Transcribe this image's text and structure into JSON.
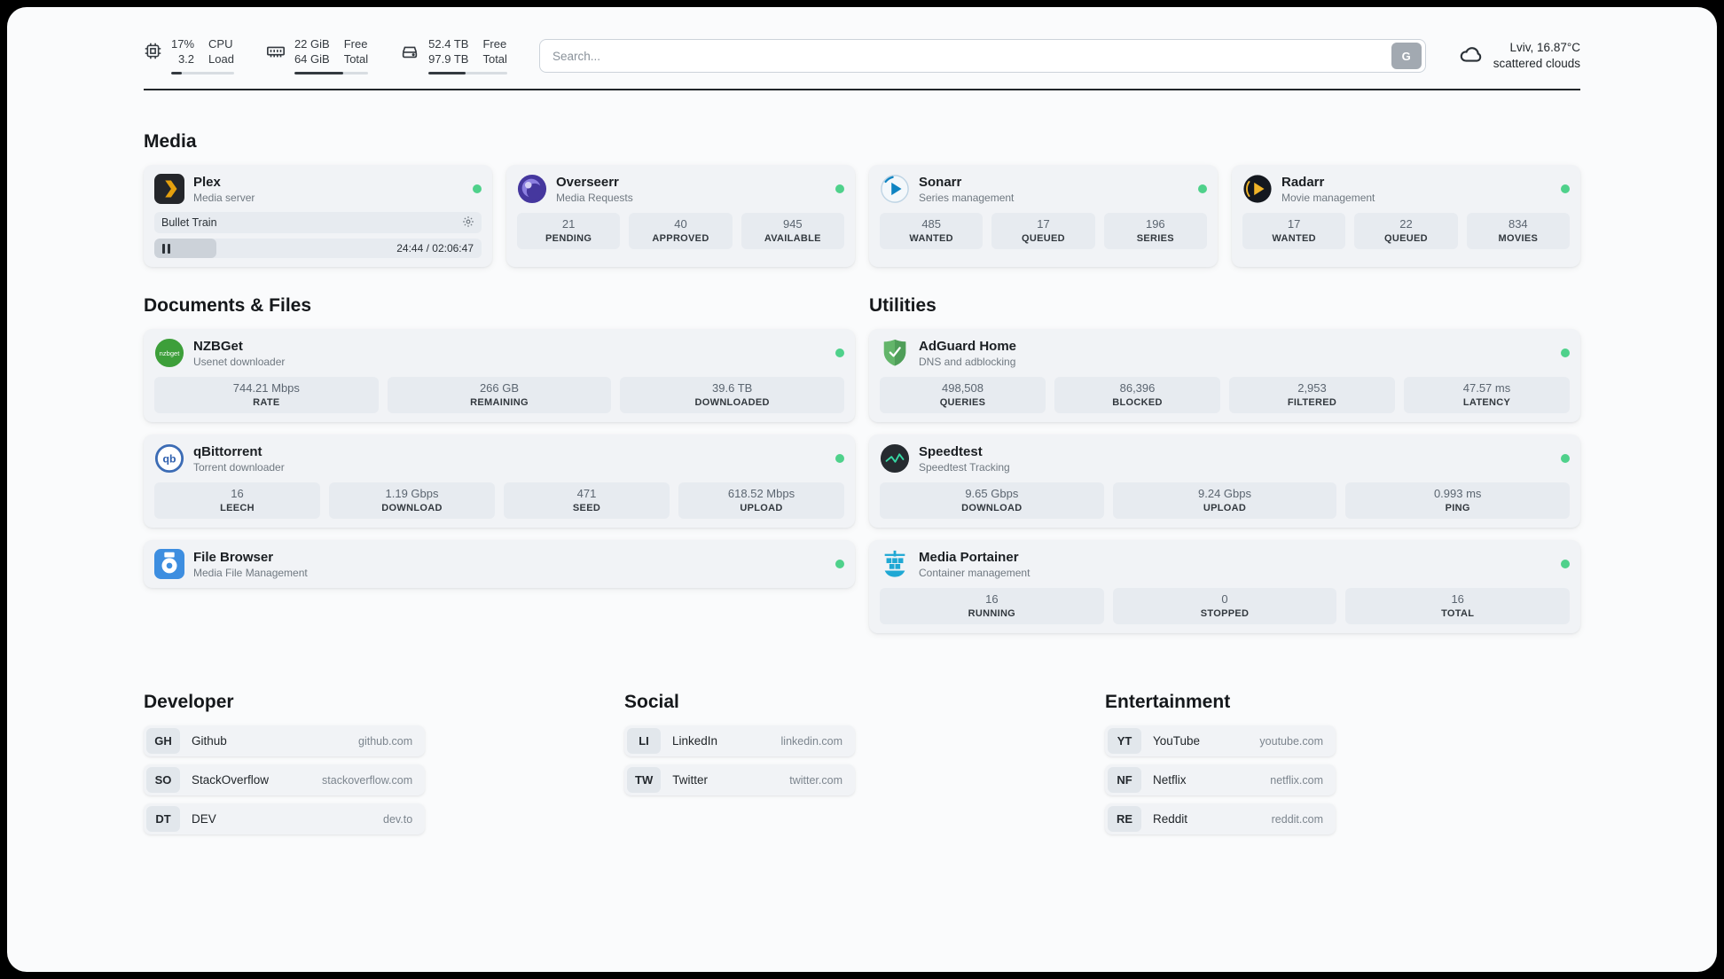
{
  "header": {
    "cpu": {
      "value_top": "17%",
      "value_bottom": "3.2",
      "label_top": "CPU",
      "label_bottom": "Load",
      "usage_percent": 17
    },
    "memory": {
      "value_top": "22 GiB",
      "value_bottom": "64 GiB",
      "label_top": "Free",
      "label_bottom": "Total",
      "usage_percent": 66
    },
    "disk": {
      "value_top": "52.4 TB",
      "value_bottom": "97.9 TB",
      "label_top": "Free",
      "label_bottom": "Total",
      "usage_percent": 47
    },
    "search": {
      "placeholder": "Search...",
      "button_label": "G"
    },
    "weather": {
      "location": "Lviv, 16.87°C",
      "condition": "scattered clouds"
    }
  },
  "media": {
    "title": "Media",
    "plex": {
      "name": "Plex",
      "subtitle": "Media server",
      "now_playing": "Bullet Train",
      "time": "24:44 / 02:06:47",
      "progress_percent": 19
    },
    "overseerr": {
      "name": "Overseerr",
      "subtitle": "Media Requests",
      "stats": [
        {
          "value": "21",
          "label": "PENDING"
        },
        {
          "value": "40",
          "label": "APPROVED"
        },
        {
          "value": "945",
          "label": "AVAILABLE"
        }
      ]
    },
    "sonarr": {
      "name": "Sonarr",
      "subtitle": "Series management",
      "stats": [
        {
          "value": "485",
          "label": "WANTED"
        },
        {
          "value": "17",
          "label": "QUEUED"
        },
        {
          "value": "196",
          "label": "SERIES"
        }
      ]
    },
    "radarr": {
      "name": "Radarr",
      "subtitle": "Movie management",
      "stats": [
        {
          "value": "17",
          "label": "WANTED"
        },
        {
          "value": "22",
          "label": "QUEUED"
        },
        {
          "value": "834",
          "label": "MOVIES"
        }
      ]
    }
  },
  "documents": {
    "title": "Documents & Files",
    "nzbget": {
      "name": "NZBGet",
      "subtitle": "Usenet downloader",
      "stats": [
        {
          "value": "744.21 Mbps",
          "label": "RATE"
        },
        {
          "value": "266 GB",
          "label": "REMAINING"
        },
        {
          "value": "39.6 TB",
          "label": "DOWNLOADED"
        }
      ]
    },
    "qbittorrent": {
      "name": "qBittorrent",
      "subtitle": "Torrent downloader",
      "stats": [
        {
          "value": "16",
          "label": "LEECH"
        },
        {
          "value": "1.19 Gbps",
          "label": "DOWNLOAD"
        },
        {
          "value": "471",
          "label": "SEED"
        },
        {
          "value": "618.52 Mbps",
          "label": "UPLOAD"
        }
      ]
    },
    "filebrowser": {
      "name": "File Browser",
      "subtitle": "Media File Management"
    }
  },
  "utilities": {
    "title": "Utilities",
    "adguard": {
      "name": "AdGuard Home",
      "subtitle": "DNS and adblocking",
      "stats": [
        {
          "value": "498,508",
          "label": "QUERIES"
        },
        {
          "value": "86,396",
          "label": "BLOCKED"
        },
        {
          "value": "2,953",
          "label": "FILTERED"
        },
        {
          "value": "47.57 ms",
          "label": "LATENCY"
        }
      ]
    },
    "speedtest": {
      "name": "Speedtest",
      "subtitle": "Speedtest Tracking",
      "stats": [
        {
          "value": "9.65 Gbps",
          "label": "DOWNLOAD"
        },
        {
          "value": "9.24 Gbps",
          "label": "UPLOAD"
        },
        {
          "value": "0.993 ms",
          "label": "PING"
        }
      ]
    },
    "portainer": {
      "name": "Media Portainer",
      "subtitle": "Container management",
      "stats": [
        {
          "value": "16",
          "label": "RUNNING"
        },
        {
          "value": "0",
          "label": "STOPPED"
        },
        {
          "value": "16",
          "label": "TOTAL"
        }
      ]
    }
  },
  "bookmarks": [
    {
      "title": "Developer",
      "items": [
        {
          "abbr": "GH",
          "name": "Github",
          "url": "github.com"
        },
        {
          "abbr": "SO",
          "name": "StackOverflow",
          "url": "stackoverflow.com"
        },
        {
          "abbr": "DT",
          "name": "DEV",
          "url": "dev.to"
        }
      ]
    },
    {
      "title": "Social",
      "items": [
        {
          "abbr": "LI",
          "name": "LinkedIn",
          "url": "linkedin.com"
        },
        {
          "abbr": "TW",
          "name": "Twitter",
          "url": "twitter.com"
        }
      ]
    },
    {
      "title": "Entertainment",
      "items": [
        {
          "abbr": "YT",
          "name": "YouTube",
          "url": "youtube.com"
        },
        {
          "abbr": "NF",
          "name": "Netflix",
          "url": "netflix.com"
        },
        {
          "abbr": "RE",
          "name": "Reddit",
          "url": "reddit.com"
        }
      ]
    }
  ],
  "colors": {
    "status_ok": "#4fd18b",
    "plex_accent": "#e5a00d"
  }
}
